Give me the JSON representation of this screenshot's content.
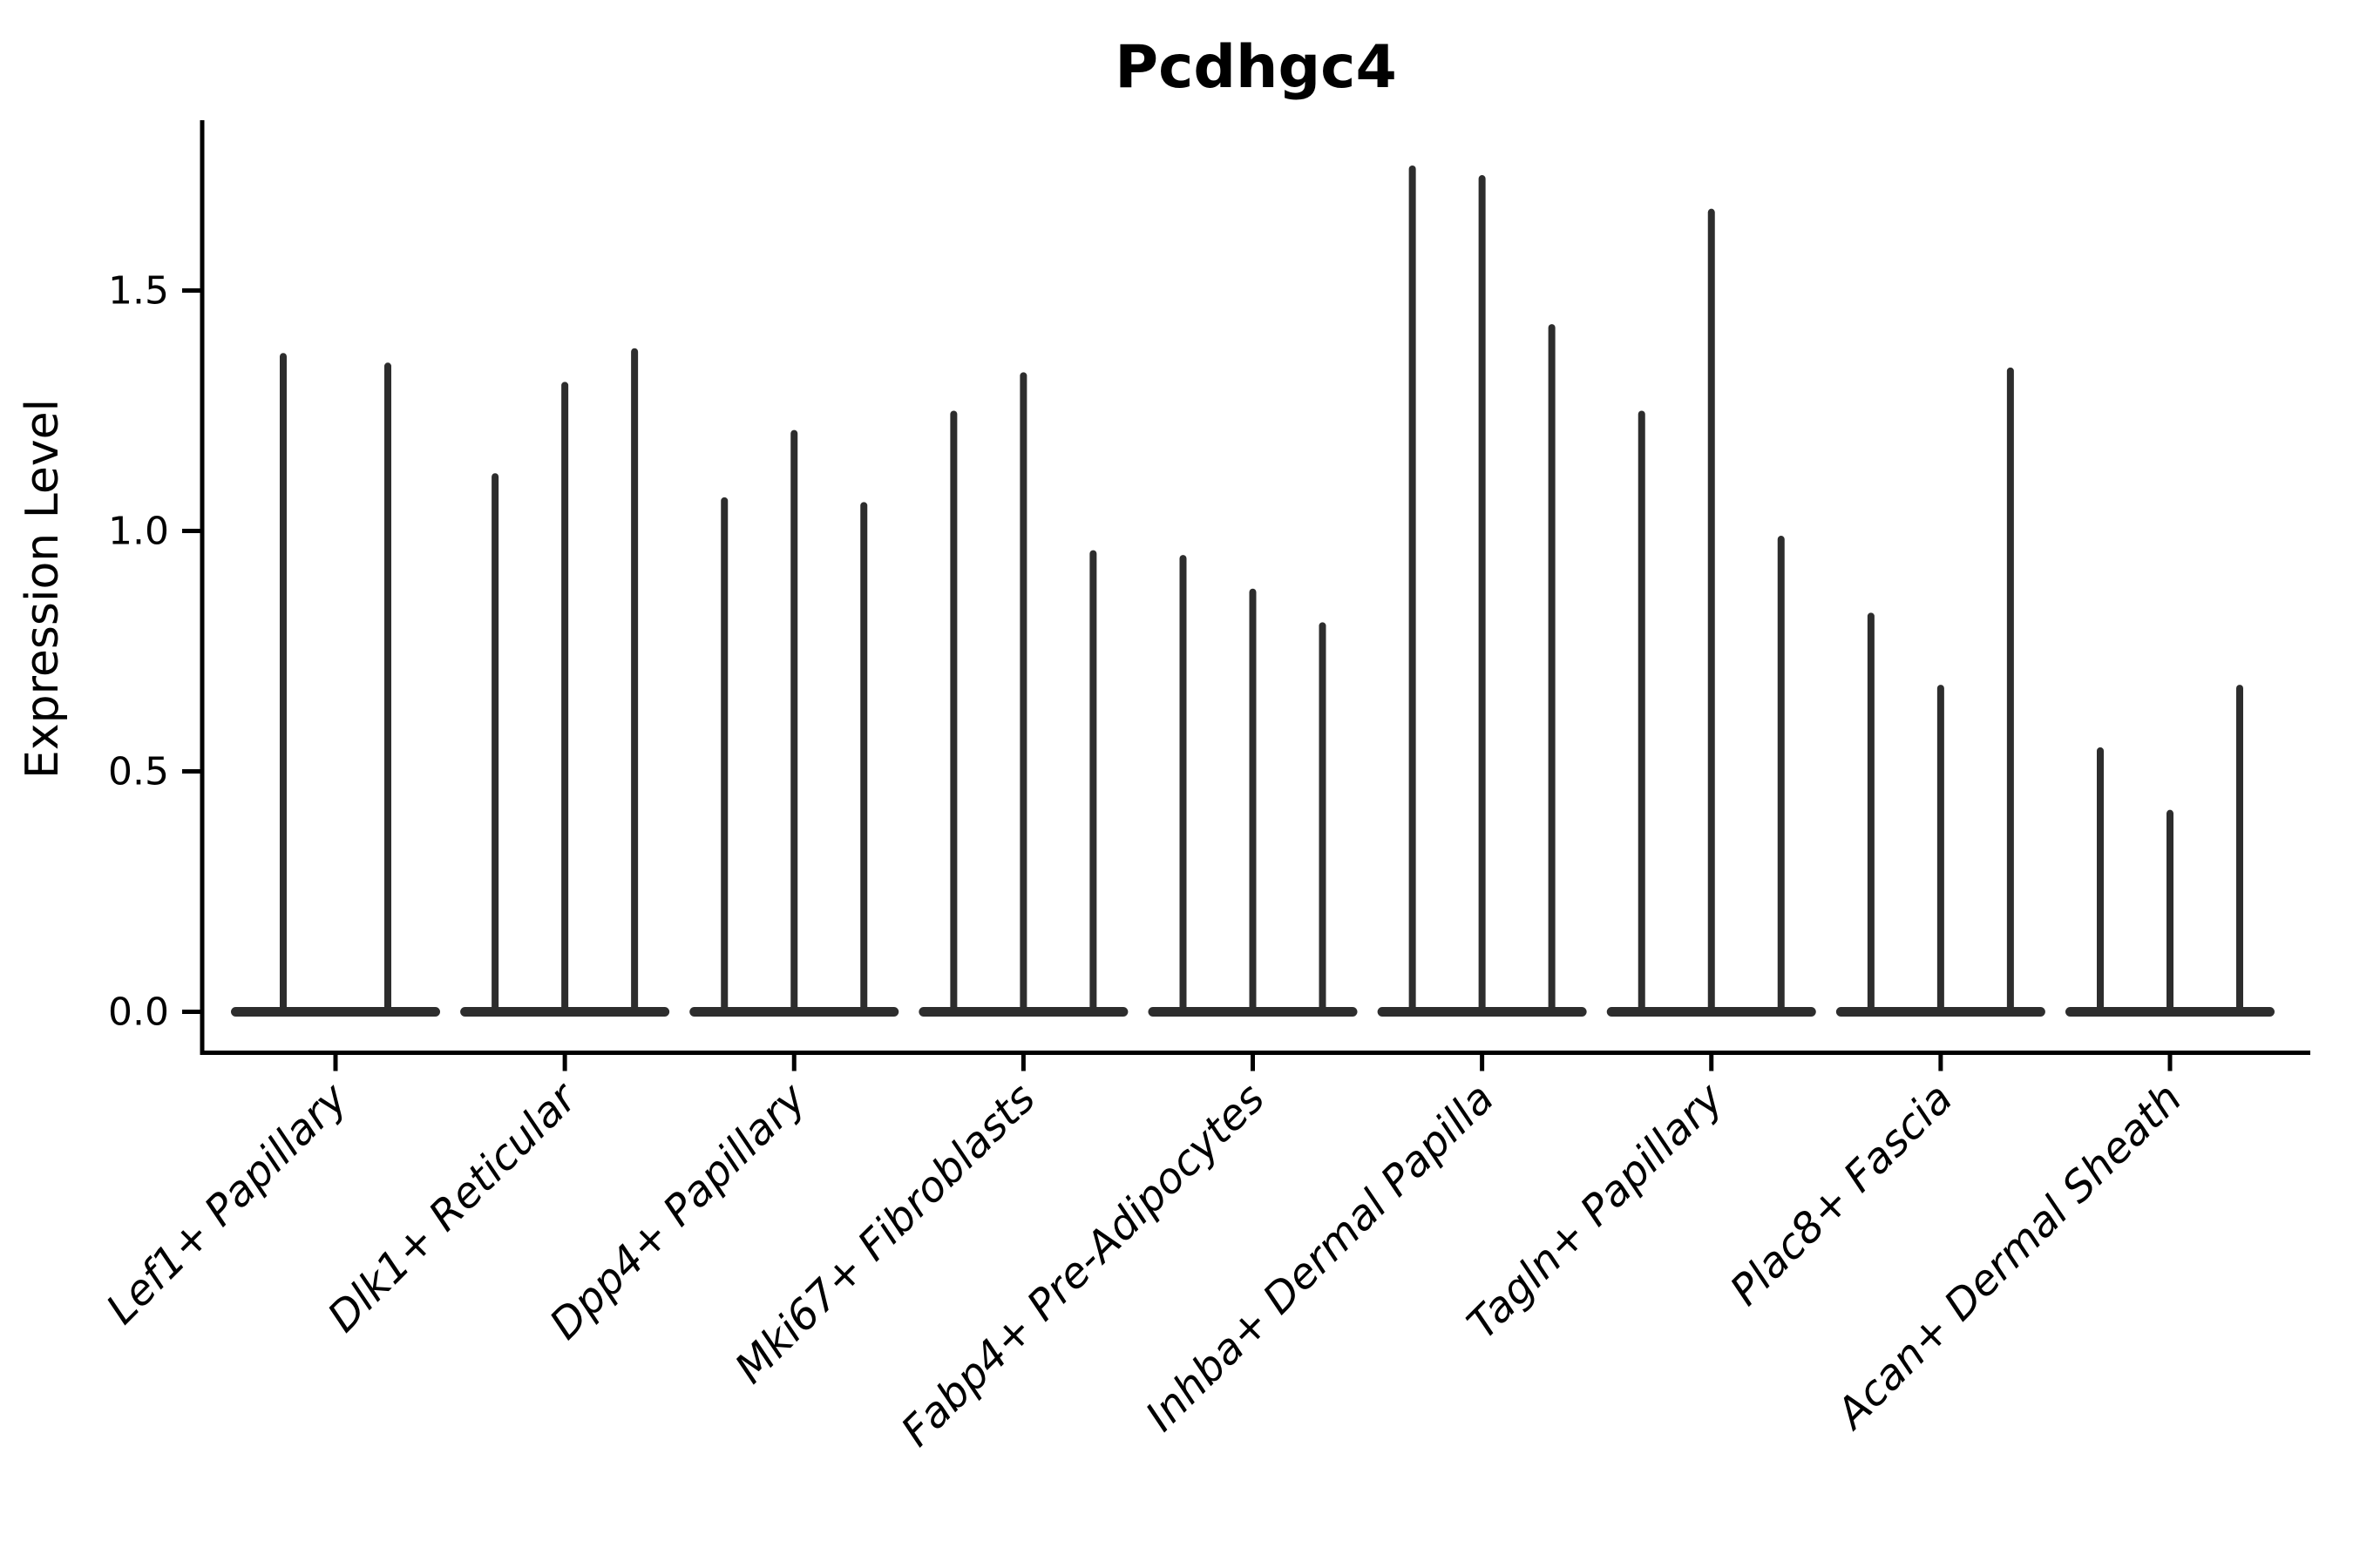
{
  "chart_data": {
    "type": "violin",
    "title": "Pcdhgc4",
    "ylabel": "Expression Level",
    "xlabel": "",
    "ylim": [
      0,
      1.85
    ],
    "yticks": [
      0.0,
      0.5,
      1.0,
      1.5
    ],
    "ytick_labels": [
      "0.0",
      "0.5",
      "1.0",
      "1.5"
    ],
    "grid": false,
    "legend": null,
    "axis_color": "#000000",
    "violin_color": "#2d2d2d",
    "style_note": "needle-style violins: wide flat base at expression 0 with a thin spike up to the maximum expression value; 2 violins in first group, 3 in all others",
    "groups": [
      {
        "label": "Lef1+ Papillary",
        "violin_max_values": [
          1.37,
          1.35
        ]
      },
      {
        "label": "Dlk1+ Reticular",
        "violin_max_values": [
          1.12,
          1.31,
          1.38
        ]
      },
      {
        "label": "Dpp4+ Papillary",
        "violin_max_values": [
          1.07,
          1.21,
          1.06
        ]
      },
      {
        "label": "Mki67+ Fibroblasts",
        "violin_max_values": [
          1.25,
          1.33,
          0.96
        ]
      },
      {
        "label": "Fabp4+ Pre-Adipocytes",
        "violin_max_values": [
          0.95,
          0.88,
          0.81
        ]
      },
      {
        "label": "Inhba+ Dermal Papilla",
        "violin_max_values": [
          1.76,
          1.74,
          1.43
        ]
      },
      {
        "label": "Tagln+ Papillary",
        "violin_max_values": [
          1.25,
          1.67,
          0.99
        ]
      },
      {
        "label": "Plac8+ Fascia",
        "violin_max_values": [
          0.83,
          0.68,
          1.34
        ]
      },
      {
        "label": "Acan+ Dermal Sheath",
        "violin_max_values": [
          0.55,
          0.42,
          0.68
        ]
      }
    ]
  }
}
